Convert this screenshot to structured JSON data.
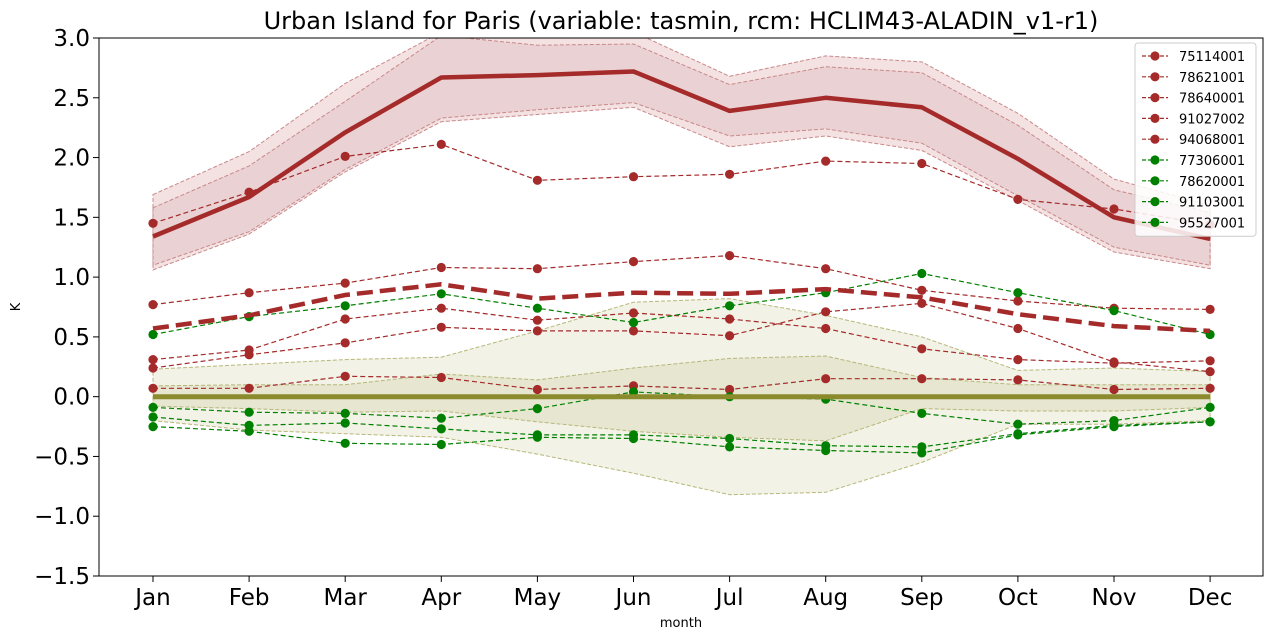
{
  "chart_data": {
    "type": "line",
    "title": "Urban Island for Paris (variable: tasmin, rcm: HCLIM43-ALADIN_v1-r1)",
    "xlabel": "month",
    "ylabel": "K",
    "categories": [
      "Jan",
      "Feb",
      "Mar",
      "Apr",
      "May",
      "Jun",
      "Jul",
      "Aug",
      "Sep",
      "Oct",
      "Nov",
      "Dec"
    ],
    "ylim": [
      -1.5,
      3.0
    ],
    "yticks": [
      -1.5,
      -1.0,
      -0.5,
      0.0,
      0.5,
      1.0,
      1.5,
      2.0,
      2.5,
      3.0
    ],
    "ytick_labels": [
      "−1.5",
      "−1.0",
      "−0.5",
      "0.0",
      "0.5",
      "1.0",
      "1.5",
      "2.0",
      "2.5",
      "3.0"
    ],
    "grid": false,
    "legend_position": "top-right",
    "colors": {
      "urban": "#a52a2a",
      "rural": "#008000",
      "urban_band": "#e8cfd1",
      "rural_band": "#eeeedd",
      "rural_mean": "#8b8b2e"
    },
    "urban_mean": [
      1.34,
      1.67,
      2.21,
      2.67,
      2.69,
      2.72,
      2.39,
      2.5,
      2.42,
      1.99,
      1.5,
      1.32
    ],
    "urban_band_outer_upper": [
      1.69,
      2.05,
      2.62,
      3.05,
      3.05,
      3.05,
      2.68,
      2.85,
      2.8,
      2.37,
      1.82,
      1.6
    ],
    "urban_band_outer_lower": [
      1.06,
      1.36,
      1.88,
      2.3,
      2.36,
      2.42,
      2.09,
      2.18,
      2.06,
      1.64,
      1.21,
      1.07
    ],
    "urban_band_inner_upper": [
      1.58,
      1.93,
      2.47,
      3.02,
      2.94,
      2.95,
      2.61,
      2.76,
      2.71,
      2.27,
      1.73,
      1.54
    ],
    "urban_band_inner_lower": [
      1.1,
      1.38,
      1.9,
      2.33,
      2.4,
      2.46,
      2.18,
      2.24,
      2.12,
      1.68,
      1.25,
      1.1
    ],
    "urban_dashed_mean": [
      0.57,
      0.68,
      0.85,
      0.94,
      0.82,
      0.87,
      0.86,
      0.9,
      0.83,
      0.69,
      0.59,
      0.55
    ],
    "rural_mean": [
      0,
      0,
      0,
      0,
      0,
      0,
      0,
      0,
      0,
      0,
      0,
      0
    ],
    "rural_band_outer_upper": [
      0.23,
      0.27,
      0.31,
      0.33,
      0.55,
      0.79,
      0.82,
      0.68,
      0.5,
      0.22,
      0.24,
      0.21
    ],
    "rural_band_outer_lower": [
      -0.2,
      -0.28,
      -0.31,
      -0.34,
      -0.48,
      -0.64,
      -0.82,
      -0.8,
      -0.55,
      -0.23,
      -0.23,
      -0.2
    ],
    "rural_band_inner_upper": [
      0.09,
      0.1,
      0.1,
      0.19,
      0.14,
      0.24,
      0.32,
      0.34,
      0.16,
      0.1,
      0.1,
      0.1
    ],
    "rural_band_inner_lower": [
      -0.08,
      -0.1,
      -0.13,
      -0.12,
      -0.21,
      -0.29,
      -0.34,
      -0.37,
      -0.1,
      -0.12,
      -0.12,
      -0.09
    ],
    "series": [
      {
        "name": "75114001",
        "group": "urban",
        "values": [
          1.45,
          1.71,
          2.01,
          2.11,
          1.81,
          1.84,
          1.86,
          1.97,
          1.95,
          1.65,
          1.57,
          1.44
        ]
      },
      {
        "name": "78621001",
        "group": "urban",
        "values": [
          0.77,
          0.87,
          0.95,
          1.08,
          1.07,
          1.13,
          1.18,
          1.07,
          0.89,
          0.8,
          0.74,
          0.73
        ]
      },
      {
        "name": "78640001",
        "group": "urban",
        "values": [
          0.31,
          0.39,
          0.65,
          0.74,
          0.64,
          0.7,
          0.65,
          0.57,
          0.4,
          0.31,
          0.28,
          0.3
        ]
      },
      {
        "name": "91027002",
        "group": "urban",
        "values": [
          0.24,
          0.35,
          0.45,
          0.58,
          0.55,
          0.55,
          0.51,
          0.71,
          0.78,
          0.57,
          0.29,
          0.21
        ]
      },
      {
        "name": "94068001",
        "group": "urban",
        "values": [
          0.07,
          0.07,
          0.17,
          0.16,
          0.06,
          0.09,
          0.06,
          0.15,
          0.15,
          0.14,
          0.06,
          0.07
        ]
      },
      {
        "name": "77306001",
        "group": "rural",
        "values": [
          0.52,
          0.67,
          0.76,
          0.86,
          0.74,
          0.62,
          0.76,
          0.87,
          1.03,
          0.87,
          0.72,
          0.52
        ]
      },
      {
        "name": "78620001",
        "group": "rural",
        "values": [
          -0.09,
          -0.13,
          -0.14,
          -0.18,
          -0.1,
          0.04,
          0.0,
          -0.02,
          -0.14,
          -0.23,
          -0.2,
          -0.09
        ]
      },
      {
        "name": "91103001",
        "group": "rural",
        "values": [
          -0.17,
          -0.24,
          -0.22,
          -0.27,
          -0.32,
          -0.32,
          -0.35,
          -0.41,
          -0.42,
          -0.31,
          -0.24,
          -0.21
        ]
      },
      {
        "name": "95527001",
        "group": "rural",
        "values": [
          -0.25,
          -0.29,
          -0.39,
          -0.4,
          -0.34,
          -0.35,
          -0.42,
          -0.45,
          -0.47,
          -0.32,
          -0.25,
          -0.21
        ]
      }
    ]
  }
}
